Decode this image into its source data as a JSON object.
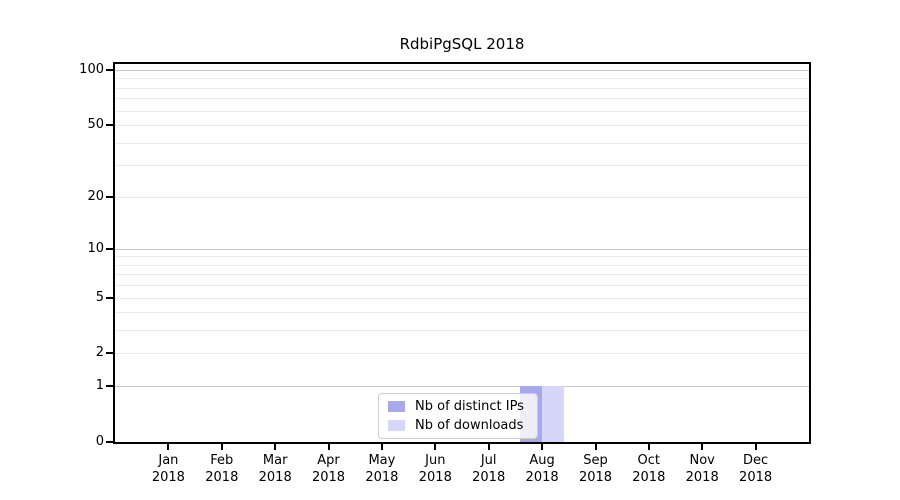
{
  "title": "RdbiPgSQL 2018",
  "chart_data": {
    "type": "bar",
    "title": "RdbiPgSQL 2018",
    "x": {
      "categories": [
        "Jan",
        "Feb",
        "Mar",
        "Apr",
        "May",
        "Jun",
        "Jul",
        "Aug",
        "Sep",
        "Oct",
        "Nov",
        "Dec"
      ],
      "sub_label": "2018"
    },
    "y_axis": {
      "scale": "log10(1+x)",
      "ticks": [
        0,
        1,
        2,
        5,
        10,
        20,
        50,
        100
      ],
      "grid_major": [
        1,
        10,
        100
      ],
      "grid_minor": [
        2,
        3,
        4,
        5,
        6,
        7,
        8,
        9,
        20,
        30,
        40,
        50,
        60,
        70,
        80,
        90
      ],
      "ylim": [
        0,
        100
      ]
    },
    "series": [
      {
        "name": "Nb of distinct IPs",
        "color": "#a8a8ec",
        "values": [
          0,
          0,
          0,
          0,
          0,
          0,
          0,
          1,
          0,
          0,
          0,
          0
        ]
      },
      {
        "name": "Nb of downloads",
        "color": "#d6d6f8",
        "values": [
          0,
          0,
          0,
          0,
          0,
          0,
          0,
          1,
          0,
          0,
          0,
          0
        ]
      }
    ],
    "legend": {
      "position": "lower center",
      "items": [
        "Nb of distinct IPs",
        "Nb of downloads"
      ]
    },
    "grid": "horizontal"
  },
  "colors": {
    "background": "#ffffff",
    "text": "#000000",
    "spine": "#000000",
    "grid_major": "#c8c8c8",
    "grid_minor": "#ececec",
    "bar_distinct_ips": "#a8a8ec",
    "bar_downloads": "#d6d6f8",
    "legend_border": "#cccccc",
    "legend_background": "rgba(255,255,255,0.8)"
  }
}
